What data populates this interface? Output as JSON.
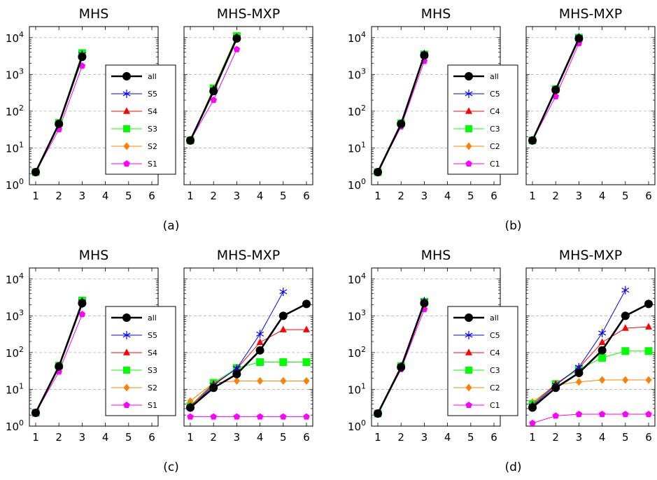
{
  "colors": {
    "all": "#000000",
    "series5": "#0000ff",
    "series4": "#ff0000",
    "series3": "#00ff00",
    "series2": "#ff8000",
    "series1": "#ff00ff"
  },
  "chart_data": [
    {
      "panel": "a",
      "caption": "(a)",
      "type": "line",
      "title": "MHS",
      "x": [
        1,
        2,
        3
      ],
      "yscale": "log",
      "xlim": [
        1,
        6
      ],
      "ylim": [
        1,
        20000
      ],
      "legend": "",
      "series": [
        {
          "key": "all",
          "name": "",
          "marker": "circle",
          "values": [
            2.2,
            45,
            3000
          ]
        },
        {
          "key": "series5",
          "name": "",
          "marker": "star",
          "values": [
            2.2,
            45,
            3500
          ]
        },
        {
          "key": "series4",
          "name": "",
          "marker": "triangle",
          "values": [
            2.2,
            46,
            3500
          ]
        },
        {
          "key": "series3",
          "name": "",
          "marker": "square",
          "values": [
            2.2,
            48,
            3800
          ]
        },
        {
          "key": "series2",
          "name": "",
          "marker": "diamond",
          "values": [
            2.2,
            45,
            3000
          ]
        },
        {
          "key": "series1",
          "name": "",
          "marker": "pentagon",
          "values": [
            2.2,
            32,
            1700
          ]
        }
      ]
    },
    {
      "panel": "a",
      "caption": "",
      "type": "line",
      "title": "MHS-MXP",
      "x": [
        1,
        2,
        3
      ],
      "yscale": "log",
      "xlim": [
        1,
        6
      ],
      "ylim": [
        1,
        20000
      ],
      "legend": "inside-left",
      "series": [
        {
          "key": "all",
          "name": "all",
          "marker": "circle",
          "values": [
            16,
            350,
            9500
          ]
        },
        {
          "key": "series5",
          "name": "S5",
          "marker": "star",
          "values": [
            16,
            380,
            10000
          ]
        },
        {
          "key": "series4",
          "name": "S4",
          "marker": "triangle",
          "values": [
            16,
            400,
            10500
          ]
        },
        {
          "key": "series3",
          "name": "S3",
          "marker": "square",
          "values": [
            16,
            420,
            11000
          ]
        },
        {
          "key": "series2",
          "name": "S2",
          "marker": "diamond",
          "values": [
            16,
            350,
            9000
          ]
        },
        {
          "key": "series1",
          "name": "S1",
          "marker": "pentagon",
          "values": [
            16,
            200,
            4800
          ]
        }
      ]
    },
    {
      "panel": "b",
      "caption": "(b)",
      "type": "line",
      "title": "MHS",
      "x": [
        1,
        2,
        3
      ],
      "yscale": "log",
      "xlim": [
        1,
        6
      ],
      "ylim": [
        1,
        20000
      ],
      "legend": "",
      "series": [
        {
          "key": "all",
          "name": "",
          "marker": "circle",
          "values": [
            2.2,
            45,
            3300
          ]
        },
        {
          "key": "series5",
          "name": "",
          "marker": "star",
          "values": [
            2.2,
            45,
            3500
          ]
        },
        {
          "key": "series4",
          "name": "",
          "marker": "triangle",
          "values": [
            2.2,
            46,
            3700
          ]
        },
        {
          "key": "series3",
          "name": "",
          "marker": "square",
          "values": [
            2.2,
            47,
            3500
          ]
        },
        {
          "key": "series2",
          "name": "",
          "marker": "diamond",
          "values": [
            2.2,
            45,
            3300
          ]
        },
        {
          "key": "series1",
          "name": "",
          "marker": "pentagon",
          "values": [
            2.2,
            38,
            2300
          ]
        }
      ]
    },
    {
      "panel": "b",
      "caption": "",
      "type": "line",
      "title": "MHS-MXP",
      "x": [
        1,
        2,
        3
      ],
      "yscale": "log",
      "xlim": [
        1,
        6
      ],
      "ylim": [
        1,
        20000
      ],
      "legend": "inside-left",
      "series": [
        {
          "key": "all",
          "name": "all",
          "marker": "circle",
          "values": [
            16,
            380,
            9500
          ]
        },
        {
          "key": "series5",
          "name": "C5",
          "marker": "star",
          "values": [
            16,
            380,
            10000
          ]
        },
        {
          "key": "series4",
          "name": "C4",
          "marker": "triangle",
          "values": [
            16,
            390,
            10500
          ]
        },
        {
          "key": "series3",
          "name": "C3",
          "marker": "square",
          "values": [
            16,
            400,
            10000
          ]
        },
        {
          "key": "series2",
          "name": "C2",
          "marker": "diamond",
          "values": [
            16,
            380,
            9000
          ]
        },
        {
          "key": "series1",
          "name": "C1",
          "marker": "pentagon",
          "values": [
            16,
            250,
            7000
          ]
        }
      ]
    },
    {
      "panel": "c",
      "caption": "(c)",
      "type": "line",
      "title": "MHS",
      "x": [
        1,
        2,
        3
      ],
      "yscale": "log",
      "xlim": [
        1,
        6
      ],
      "ylim": [
        1,
        20000
      ],
      "legend": "",
      "series": [
        {
          "key": "all",
          "name": "",
          "marker": "circle",
          "values": [
            2.3,
            42,
            2200
          ]
        },
        {
          "key": "series5",
          "name": "",
          "marker": "star",
          "values": [
            2.3,
            42,
            2400
          ]
        },
        {
          "key": "series4",
          "name": "",
          "marker": "triangle",
          "values": [
            2.3,
            43,
            2500
          ]
        },
        {
          "key": "series3",
          "name": "",
          "marker": "square",
          "values": [
            2.3,
            44,
            2600
          ]
        },
        {
          "key": "series2",
          "name": "",
          "marker": "diamond",
          "values": [
            2.3,
            42,
            2000
          ]
        },
        {
          "key": "series1",
          "name": "",
          "marker": "pentagon",
          "values": [
            2.3,
            30,
            1100
          ]
        }
      ]
    },
    {
      "panel": "c",
      "caption": "",
      "type": "line",
      "title": "MHS-MXP",
      "x": [
        1,
        2,
        3,
        4,
        5,
        6
      ],
      "yscale": "log",
      "xlim": [
        1,
        6
      ],
      "ylim": [
        1,
        20000
      ],
      "legend": "inside-left",
      "series": [
        {
          "key": "all",
          "name": "all",
          "marker": "circle",
          "values": [
            3.2,
            11,
            26,
            115,
            1000,
            2100
          ]
        },
        {
          "key": "series5",
          "name": "S5",
          "marker": "star",
          "values": [
            3.2,
            13,
            37,
            320,
            4500,
            null
          ]
        },
        {
          "key": "series4",
          "name": "S4",
          "marker": "triangle",
          "values": [
            3.5,
            14,
            36,
            190,
            420,
            420
          ]
        },
        {
          "key": "series3",
          "name": "S3",
          "marker": "square",
          "values": [
            3.5,
            15,
            38,
            55,
            55,
            55
          ]
        },
        {
          "key": "series2",
          "name": "S2",
          "marker": "diamond",
          "values": [
            4.8,
            15,
            17,
            17,
            17,
            17
          ]
        },
        {
          "key": "series1",
          "name": "S1",
          "marker": "pentagon",
          "values": [
            1.8,
            1.8,
            1.8,
            1.8,
            1.8,
            1.8
          ]
        }
      ]
    },
    {
      "panel": "d",
      "caption": "(d)",
      "type": "line",
      "title": "MHS",
      "x": [
        1,
        2,
        3
      ],
      "yscale": "log",
      "xlim": [
        1,
        6
      ],
      "ylim": [
        1,
        20000
      ],
      "legend": "",
      "series": [
        {
          "key": "all",
          "name": "",
          "marker": "circle",
          "values": [
            2.2,
            40,
            2200
          ]
        },
        {
          "key": "series5",
          "name": "",
          "marker": "star",
          "values": [
            2.2,
            42,
            2500
          ]
        },
        {
          "key": "series4",
          "name": "",
          "marker": "triangle",
          "values": [
            2.2,
            42,
            2500
          ]
        },
        {
          "key": "series3",
          "name": "",
          "marker": "square",
          "values": [
            2.2,
            43,
            2400
          ]
        },
        {
          "key": "series2",
          "name": "",
          "marker": "diamond",
          "values": [
            2.2,
            40,
            2000
          ]
        },
        {
          "key": "series1",
          "name": "",
          "marker": "pentagon",
          "values": [
            2.2,
            35,
            1500
          ]
        }
      ]
    },
    {
      "panel": "d",
      "caption": "",
      "type": "line",
      "title": "MHS-MXP",
      "x": [
        1,
        2,
        3,
        4,
        5,
        6
      ],
      "yscale": "log",
      "xlim": [
        1,
        6
      ],
      "ylim": [
        1,
        20000
      ],
      "legend": "inside-left",
      "series": [
        {
          "key": "all",
          "name": "all",
          "marker": "circle",
          "values": [
            3.2,
            11,
            28,
            115,
            1000,
            2100
          ]
        },
        {
          "key": "series5",
          "name": "C5",
          "marker": "star",
          "values": [
            3.5,
            13,
            40,
            340,
            5000,
            null
          ]
        },
        {
          "key": "series4",
          "name": "C4",
          "marker": "triangle",
          "values": [
            3.8,
            14,
            38,
            190,
            460,
            500
          ]
        },
        {
          "key": "series3",
          "name": "C3",
          "marker": "square",
          "values": [
            4,
            14,
            35,
            72,
            110,
            110
          ]
        },
        {
          "key": "series2",
          "name": "C2",
          "marker": "diamond",
          "values": [
            4.5,
            13,
            16,
            18,
            18,
            18
          ]
        },
        {
          "key": "series1",
          "name": "C1",
          "marker": "pentagon",
          "values": [
            1.2,
            1.9,
            2.1,
            2.1,
            2.1,
            2.1
          ]
        }
      ]
    }
  ]
}
